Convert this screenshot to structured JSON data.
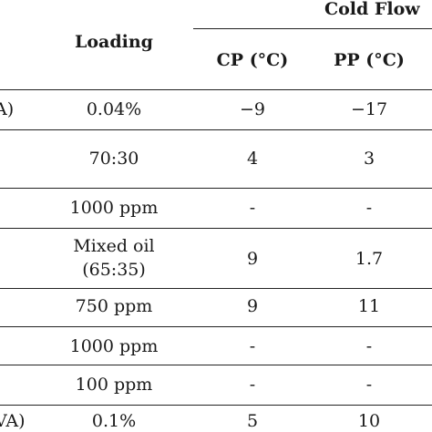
{
  "header": {
    "loading": "Loading",
    "group_label": "Cold Flow",
    "col_cp": "CP (°C)",
    "col_pp": "PP (°C)"
  },
  "rows": [
    {
      "left_fragment": "A)",
      "loading": "0.04%",
      "cp": "−9",
      "pp": "−17"
    },
    {
      "left_fragment": "",
      "loading": "70:30",
      "cp": "4",
      "pp": "3"
    },
    {
      "left_fragment": "",
      "loading": "1000 ppm",
      "cp": "-",
      "pp": "-"
    },
    {
      "left_fragment": "",
      "loading_line1": "Mixed oil",
      "loading_line2": "(65:35)",
      "cp": "9",
      "pp": "1.7"
    },
    {
      "left_fragment": "",
      "loading": "750 ppm",
      "cp": "9",
      "pp": "11"
    },
    {
      "left_fragment": "",
      "loading": "1000 ppm",
      "cp": "-",
      "pp": "-"
    },
    {
      "left_fragment": "",
      "loading": "100 ppm",
      "cp": "-",
      "pp": "-"
    },
    {
      "left_fragment": "VA)",
      "loading": "0.1%",
      "cp": "5",
      "pp": "10"
    }
  ]
}
